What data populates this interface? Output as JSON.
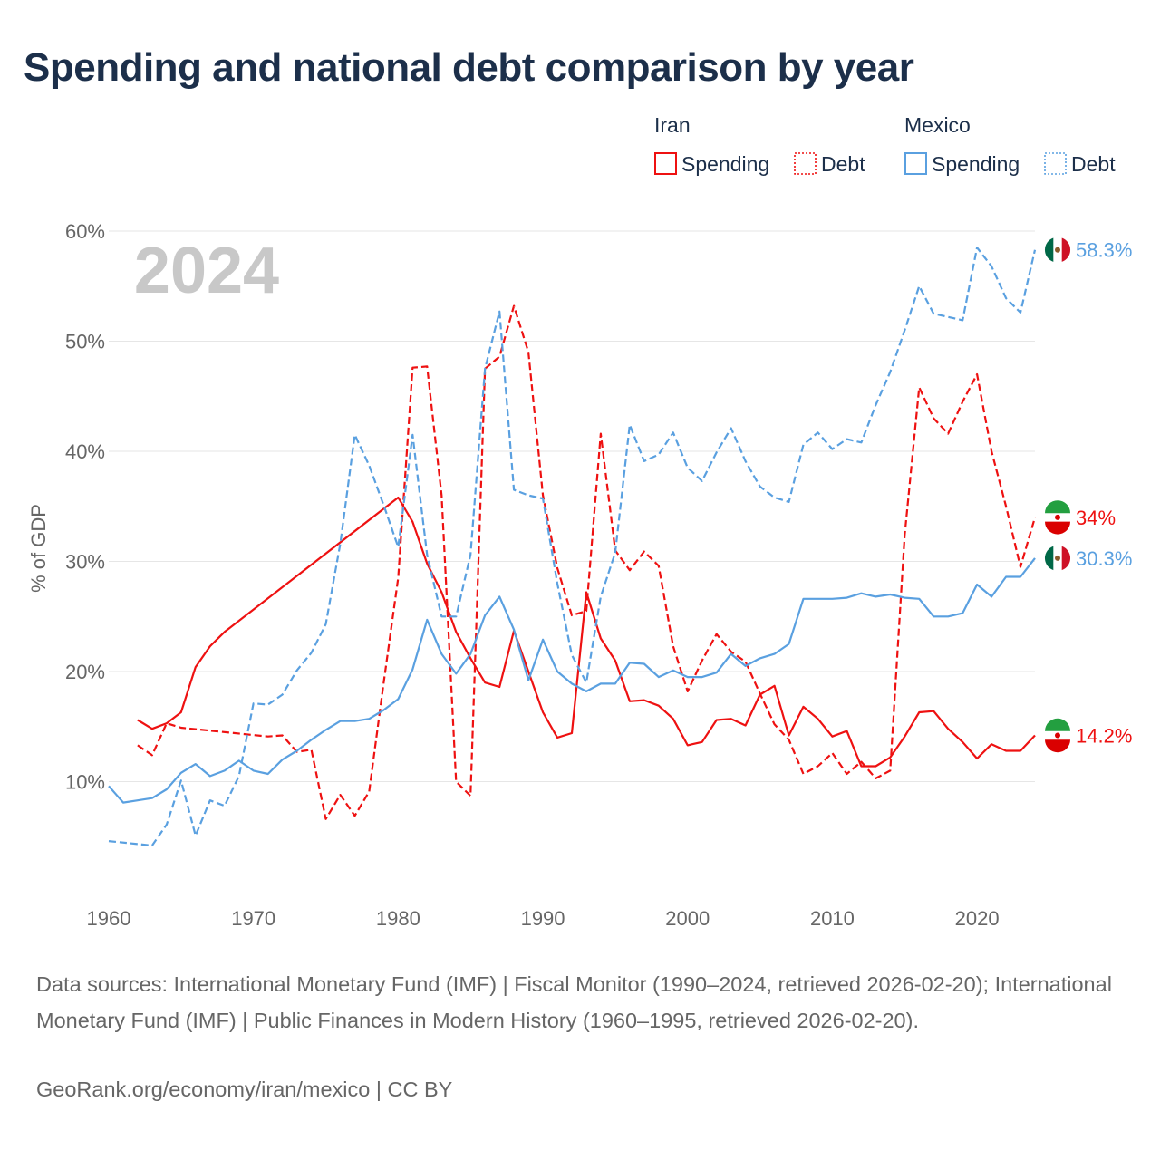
{
  "title": "Spending and national debt comparison by year",
  "year_label": "2024",
  "legend": {
    "groups": [
      {
        "country": "Iran",
        "items": [
          "Spending",
          "Debt"
        ],
        "color": "#ee1111"
      },
      {
        "country": "Mexico",
        "items": [
          "Spending",
          "Debt"
        ],
        "color": "#5aa0e0"
      }
    ]
  },
  "footer": {
    "source": "Data sources: International Monetary Fund (IMF) | Fiscal Monitor (1990–2024, retrieved 2026-02-20); International Monetary Fund (IMF) | Public Finances in Modern History (1960–1995, retrieved 2026-02-20).",
    "credit": "GeoRank.org/economy/iran/mexico | CC BY"
  },
  "chart_data": {
    "type": "line",
    "title": "Spending and national debt comparison by year",
    "xlabel": "",
    "ylabel": "% of GDP",
    "xlim": [
      1960,
      2024
    ],
    "ylim": [
      0,
      60
    ],
    "x_ticks": [
      1960,
      1970,
      1980,
      1990,
      2000,
      2010,
      2020
    ],
    "y_ticks": [
      10,
      20,
      30,
      40,
      50,
      60
    ],
    "y_tick_labels": [
      "10%",
      "20%",
      "30%",
      "40%",
      "50%",
      "60%"
    ],
    "grid": true,
    "series": [
      {
        "name": "Iran Spending",
        "country": "Iran",
        "metric": "Spending",
        "color": "#ee1111",
        "dashed": false,
        "end_label": "14.2%",
        "points": [
          [
            1962,
            15.6
          ],
          [
            1963,
            14.8
          ],
          [
            1964,
            15.3
          ],
          [
            1965,
            16.3
          ],
          [
            1966,
            20.4
          ],
          [
            1967,
            22.3
          ],
          [
            1968,
            23.6
          ],
          [
            1980,
            35.8
          ],
          [
            1981,
            33.6
          ],
          [
            1982,
            29.8
          ],
          [
            1983,
            27.2
          ],
          [
            1984,
            23.6
          ],
          [
            1985,
            21.2
          ],
          [
            1986,
            19.0
          ],
          [
            1987,
            18.6
          ],
          [
            1988,
            23.7
          ],
          [
            1989,
            20.0
          ],
          [
            1990,
            16.3
          ],
          [
            1991,
            14.0
          ],
          [
            1992,
            14.4
          ],
          [
            1993,
            27.2
          ],
          [
            1994,
            23.0
          ],
          [
            1995,
            21.0
          ],
          [
            1996,
            17.3
          ],
          [
            1997,
            17.4
          ],
          [
            1998,
            16.9
          ],
          [
            1999,
            15.7
          ],
          [
            2000,
            13.3
          ],
          [
            2001,
            13.6
          ],
          [
            2002,
            15.6
          ],
          [
            2003,
            15.7
          ],
          [
            2004,
            15.1
          ],
          [
            2005,
            17.9
          ],
          [
            2006,
            18.7
          ],
          [
            2007,
            14.2
          ],
          [
            2008,
            16.8
          ],
          [
            2009,
            15.7
          ],
          [
            2010,
            14.1
          ],
          [
            2011,
            14.6
          ],
          [
            2012,
            11.4
          ],
          [
            2013,
            11.4
          ],
          [
            2014,
            12.2
          ],
          [
            2015,
            14.1
          ],
          [
            2016,
            16.3
          ],
          [
            2017,
            16.4
          ],
          [
            2018,
            14.8
          ],
          [
            2019,
            13.6
          ],
          [
            2020,
            12.1
          ],
          [
            2021,
            13.4
          ],
          [
            2022,
            12.8
          ],
          [
            2023,
            12.8
          ],
          [
            2024,
            14.2
          ]
        ]
      },
      {
        "name": "Iran Debt",
        "country": "Iran",
        "metric": "Debt",
        "color": "#ee1111",
        "dashed": true,
        "end_label": "34%",
        "points": [
          [
            1962,
            13.3
          ],
          [
            1963,
            12.4
          ],
          [
            1964,
            15.3
          ],
          [
            1965,
            14.9
          ],
          [
            1971,
            14.1
          ],
          [
            1972,
            14.2
          ],
          [
            1973,
            12.7
          ],
          [
            1974,
            12.9
          ],
          [
            1975,
            6.6
          ],
          [
            1976,
            8.8
          ],
          [
            1977,
            6.9
          ],
          [
            1978,
            9.1
          ],
          [
            1979,
            19.0
          ],
          [
            1980,
            28.5
          ],
          [
            1981,
            47.6
          ],
          [
            1982,
            47.7
          ],
          [
            1983,
            36.0
          ],
          [
            1984,
            10.0
          ],
          [
            1985,
            8.7
          ],
          [
            1986,
            47.5
          ],
          [
            1987,
            48.6
          ],
          [
            1988,
            53.2
          ],
          [
            1989,
            49.0
          ],
          [
            1990,
            36.0
          ],
          [
            1991,
            29.4
          ],
          [
            1992,
            25.1
          ],
          [
            1993,
            25.5
          ],
          [
            1994,
            41.6
          ],
          [
            1995,
            31.0
          ],
          [
            1996,
            29.2
          ],
          [
            1997,
            30.9
          ],
          [
            1998,
            29.6
          ],
          [
            1999,
            22.3
          ],
          [
            2000,
            18.2
          ],
          [
            2001,
            21.0
          ],
          [
            2002,
            23.4
          ],
          [
            2003,
            21.8
          ],
          [
            2004,
            20.9
          ],
          [
            2005,
            18.0
          ],
          [
            2006,
            15.2
          ],
          [
            2007,
            13.8
          ],
          [
            2008,
            10.7
          ],
          [
            2009,
            11.4
          ],
          [
            2010,
            12.6
          ],
          [
            2011,
            10.7
          ],
          [
            2012,
            11.8
          ],
          [
            2013,
            10.3
          ],
          [
            2014,
            11.0
          ],
          [
            2015,
            32.4
          ],
          [
            2016,
            45.8
          ],
          [
            2017,
            43.0
          ],
          [
            2018,
            41.6
          ],
          [
            2019,
            44.5
          ],
          [
            2020,
            47.0
          ],
          [
            2021,
            40.0
          ],
          [
            2022,
            35.0
          ],
          [
            2023,
            29.5
          ],
          [
            2024,
            34.0
          ]
        ]
      },
      {
        "name": "Mexico Spending",
        "country": "Mexico",
        "metric": "Spending",
        "color": "#5aa0e0",
        "dashed": false,
        "end_label": "30.3%",
        "points": [
          [
            1960,
            9.6
          ],
          [
            1961,
            8.1
          ],
          [
            1962,
            8.3
          ],
          [
            1963,
            8.5
          ],
          [
            1964,
            9.3
          ],
          [
            1965,
            10.8
          ],
          [
            1966,
            11.6
          ],
          [
            1967,
            10.5
          ],
          [
            1968,
            11.0
          ],
          [
            1969,
            11.9
          ],
          [
            1970,
            11.0
          ],
          [
            1971,
            10.7
          ],
          [
            1972,
            12.0
          ],
          [
            1973,
            12.8
          ],
          [
            1974,
            13.8
          ],
          [
            1975,
            14.7
          ],
          [
            1976,
            15.5
          ],
          [
            1977,
            15.5
          ],
          [
            1978,
            15.7
          ],
          [
            1979,
            16.5
          ],
          [
            1980,
            17.5
          ],
          [
            1981,
            20.2
          ],
          [
            1982,
            24.7
          ],
          [
            1983,
            21.6
          ],
          [
            1984,
            19.8
          ],
          [
            1985,
            21.6
          ],
          [
            1986,
            25.1
          ],
          [
            1987,
            26.8
          ],
          [
            1988,
            23.8
          ],
          [
            1989,
            19.2
          ],
          [
            1990,
            22.9
          ],
          [
            1991,
            20.0
          ],
          [
            1992,
            18.9
          ],
          [
            1993,
            18.2
          ],
          [
            1994,
            18.9
          ],
          [
            1995,
            18.9
          ],
          [
            1996,
            20.8
          ],
          [
            1997,
            20.7
          ],
          [
            1998,
            19.5
          ],
          [
            1999,
            20.1
          ],
          [
            2000,
            19.5
          ],
          [
            2001,
            19.5
          ],
          [
            2002,
            19.9
          ],
          [
            2003,
            21.6
          ],
          [
            2004,
            20.5
          ],
          [
            2005,
            21.2
          ],
          [
            2006,
            21.6
          ],
          [
            2007,
            22.5
          ],
          [
            2008,
            26.6
          ],
          [
            2009,
            26.6
          ],
          [
            2010,
            26.6
          ],
          [
            2011,
            26.7
          ],
          [
            2012,
            27.1
          ],
          [
            2013,
            26.8
          ],
          [
            2014,
            27.0
          ],
          [
            2015,
            26.7
          ],
          [
            2016,
            26.6
          ],
          [
            2017,
            25.0
          ],
          [
            2018,
            25.0
          ],
          [
            2019,
            25.3
          ],
          [
            2020,
            27.9
          ],
          [
            2021,
            26.8
          ],
          [
            2022,
            28.6
          ],
          [
            2023,
            28.6
          ],
          [
            2024,
            30.3
          ]
        ]
      },
      {
        "name": "Mexico Debt",
        "country": "Mexico",
        "metric": "Debt",
        "color": "#5aa0e0",
        "dashed": true,
        "end_label": "58.3%",
        "points": [
          [
            1960,
            4.6
          ],
          [
            1963,
            4.2
          ],
          [
            1964,
            6.1
          ],
          [
            1965,
            10.1
          ],
          [
            1966,
            5.1
          ],
          [
            1967,
            8.3
          ],
          [
            1968,
            7.8
          ],
          [
            1969,
            10.5
          ],
          [
            1970,
            17.1
          ],
          [
            1971,
            17.0
          ],
          [
            1972,
            17.9
          ],
          [
            1973,
            20.1
          ],
          [
            1974,
            21.7
          ],
          [
            1975,
            24.3
          ],
          [
            1976,
            31.6
          ],
          [
            1977,
            41.5
          ],
          [
            1978,
            38.7
          ],
          [
            1979,
            35.1
          ],
          [
            1980,
            31.3
          ],
          [
            1981,
            41.5
          ],
          [
            1982,
            30.6
          ],
          [
            1983,
            25.0
          ],
          [
            1984,
            25.0
          ],
          [
            1985,
            30.6
          ],
          [
            1986,
            47.5
          ],
          [
            1987,
            52.7
          ],
          [
            1988,
            36.5
          ],
          [
            1989,
            36.0
          ],
          [
            1990,
            35.7
          ],
          [
            1991,
            28.0
          ],
          [
            1992,
            21.5
          ],
          [
            1993,
            19.0
          ],
          [
            1994,
            26.8
          ],
          [
            1995,
            30.8
          ],
          [
            1996,
            42.4
          ],
          [
            1997,
            39.1
          ],
          [
            1998,
            39.7
          ],
          [
            1999,
            41.7
          ],
          [
            2000,
            38.5
          ],
          [
            2001,
            37.3
          ],
          [
            2002,
            39.9
          ],
          [
            2003,
            42.1
          ],
          [
            2004,
            39.1
          ],
          [
            2005,
            36.8
          ],
          [
            2006,
            35.8
          ],
          [
            2007,
            35.4
          ],
          [
            2008,
            40.6
          ],
          [
            2009,
            41.7
          ],
          [
            2010,
            40.2
          ],
          [
            2011,
            41.1
          ],
          [
            2012,
            40.8
          ],
          [
            2013,
            44.2
          ],
          [
            2014,
            47.2
          ],
          [
            2015,
            51.0
          ],
          [
            2016,
            55.0
          ],
          [
            2017,
            52.5
          ],
          [
            2018,
            52.2
          ],
          [
            2019,
            51.9
          ],
          [
            2020,
            58.5
          ],
          [
            2021,
            56.8
          ],
          [
            2022,
            53.9
          ],
          [
            2023,
            52.6
          ],
          [
            2024,
            58.3
          ]
        ]
      }
    ]
  }
}
